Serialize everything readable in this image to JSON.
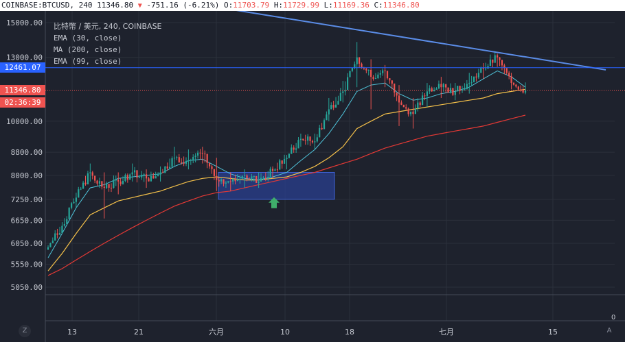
{
  "header": {
    "symbol": "COINBASE:BTCUSD,",
    "interval": "240",
    "last": "11346.80",
    "change": "-751.16 (-6.21%)",
    "o_label": "O:",
    "o_val": "11703.79",
    "h_label": "H:",
    "h_val": "11729.99",
    "l_label": "L:",
    "l_val": "11169.36",
    "c_label": "C:",
    "c_val": "11346.80"
  },
  "legend": {
    "title": "比特幣 / 美元, 240, COINBASE",
    "ema30": "EMA (30, close)",
    "ma200": "MA (200, close)",
    "ema99": "EMA (99, close)"
  },
  "price_tags": {
    "resistance": "12461.07",
    "last": "11346.80",
    "countdown": "02:36:39"
  },
  "controls": {
    "zoom": "Z",
    "auto": "A",
    "zero_label": "0"
  },
  "colors": {
    "background": "#1e222d",
    "up": "#26a69a",
    "down": "#ef5350",
    "ema30": "#4fc3d9",
    "ema99": "#f5c14a",
    "ma200": "#e53935",
    "trendline": "#5b8de8",
    "hline": "#2962ff",
    "box": "#2a3f8f"
  },
  "chart_data": {
    "type": "candlestick",
    "y_scale": "log",
    "ylim": [
      4800,
      16000
    ],
    "y_ticks": [
      "15000.00",
      "13000.00",
      "10000.00",
      "8800.00",
      "8000.00",
      "7250.00",
      "6650.00",
      "6050.00",
      "5550.00",
      "5050.00"
    ],
    "x_ticks": [
      "13",
      "21",
      "六月",
      "10",
      "18",
      "七月",
      "15"
    ],
    "ohlc_anchors": [
      {
        "c": 5950,
        "h": 6000,
        "l": 5900
      },
      {
        "c": 6500,
        "h": 6600,
        "l": 6300
      },
      {
        "c": 7300,
        "h": 7450,
        "l": 7000
      },
      {
        "c": 8100,
        "h": 8400,
        "l": 7800
      },
      {
        "c": 7600,
        "h": 8100,
        "l": 6700
      },
      {
        "c": 7800,
        "h": 8100,
        "l": 7400
      },
      {
        "c": 8100,
        "h": 8400,
        "l": 7800
      },
      {
        "c": 7900,
        "h": 8200,
        "l": 7600
      },
      {
        "c": 8100,
        "h": 8300,
        "l": 7800
      },
      {
        "c": 8600,
        "h": 9000,
        "l": 8300
      },
      {
        "c": 8500,
        "h": 8900,
        "l": 8200
      },
      {
        "c": 8750,
        "h": 9000,
        "l": 8400
      },
      {
        "c": 7850,
        "h": 8600,
        "l": 7500
      },
      {
        "c": 7800,
        "h": 8100,
        "l": 7500
      },
      {
        "c": 8000,
        "h": 8200,
        "l": 7600
      },
      {
        "c": 7800,
        "h": 8100,
        "l": 7600
      },
      {
        "c": 8150,
        "h": 8300,
        "l": 7900
      },
      {
        "c": 8600,
        "h": 8700,
        "l": 8200
      },
      {
        "c": 9300,
        "h": 9500,
        "l": 9000
      },
      {
        "c": 9200,
        "h": 9500,
        "l": 8900
      },
      {
        "c": 10500,
        "h": 11000,
        "l": 10000
      },
      {
        "c": 11300,
        "h": 11800,
        "l": 10800
      },
      {
        "c": 13000,
        "h": 13850,
        "l": 11500
      },
      {
        "c": 12000,
        "h": 12900,
        "l": 10500
      },
      {
        "c": 12300,
        "h": 12600,
        "l": 11500
      },
      {
        "c": 10800,
        "h": 11600,
        "l": 9800
      },
      {
        "c": 10300,
        "h": 11000,
        "l": 9700
      },
      {
        "c": 11300,
        "h": 11700,
        "l": 10600
      },
      {
        "c": 11500,
        "h": 12000,
        "l": 11000
      },
      {
        "c": 11300,
        "h": 11700,
        "l": 10900
      },
      {
        "c": 11700,
        "h": 12200,
        "l": 11200
      },
      {
        "c": 12400,
        "h": 12700,
        "l": 11900
      },
      {
        "c": 13000,
        "h": 13200,
        "l": 12500
      },
      {
        "c": 11703.79,
        "h": 12200,
        "l": 11400
      },
      {
        "c": 11346.8,
        "h": 11729.99,
        "l": 11169.36
      }
    ],
    "ema30": [
      5700,
      6300,
      7000,
      7600,
      7700,
      7900,
      7950,
      8000,
      8050,
      8300,
      8500,
      8550,
      8300,
      8050,
      7900,
      7850,
      7950,
      8100,
      8500,
      8900,
      9500,
      10300,
      11300,
      11600,
      11700,
      11200,
      10900,
      11000,
      11200,
      11300,
      11500,
      11900,
      12300,
      12000,
      11500
    ],
    "ema99": [
      5400,
      5800,
      6300,
      6800,
      7000,
      7200,
      7300,
      7400,
      7500,
      7650,
      7800,
      7900,
      7950,
      7900,
      7850,
      7850,
      7900,
      7950,
      8100,
      8300,
      8600,
      9000,
      9700,
      10000,
      10300,
      10400,
      10500,
      10600,
      10700,
      10800,
      10900,
      11000,
      11200,
      11300,
      11400
    ],
    "ma200": [
      5300,
      5450,
      5650,
      5850,
      6050,
      6250,
      6450,
      6650,
      6850,
      7050,
      7200,
      7350,
      7450,
      7500,
      7600,
      7700,
      7800,
      7900,
      8000,
      8100,
      8250,
      8400,
      8550,
      8750,
      8950,
      9100,
      9250,
      9400,
      9500,
      9600,
      9700,
      9800,
      9950,
      10100,
      10250
    ],
    "trendline": [
      {
        "t": 0,
        "price": 16100
      },
      {
        "t": 1,
        "price": 12350
      }
    ],
    "resistance_line": 12461.07,
    "last_price_line": 11346.8,
    "zone": {
      "price_low": 7250,
      "price_high": 8100
    },
    "marker": {
      "price": 7150,
      "direction": "up"
    }
  }
}
